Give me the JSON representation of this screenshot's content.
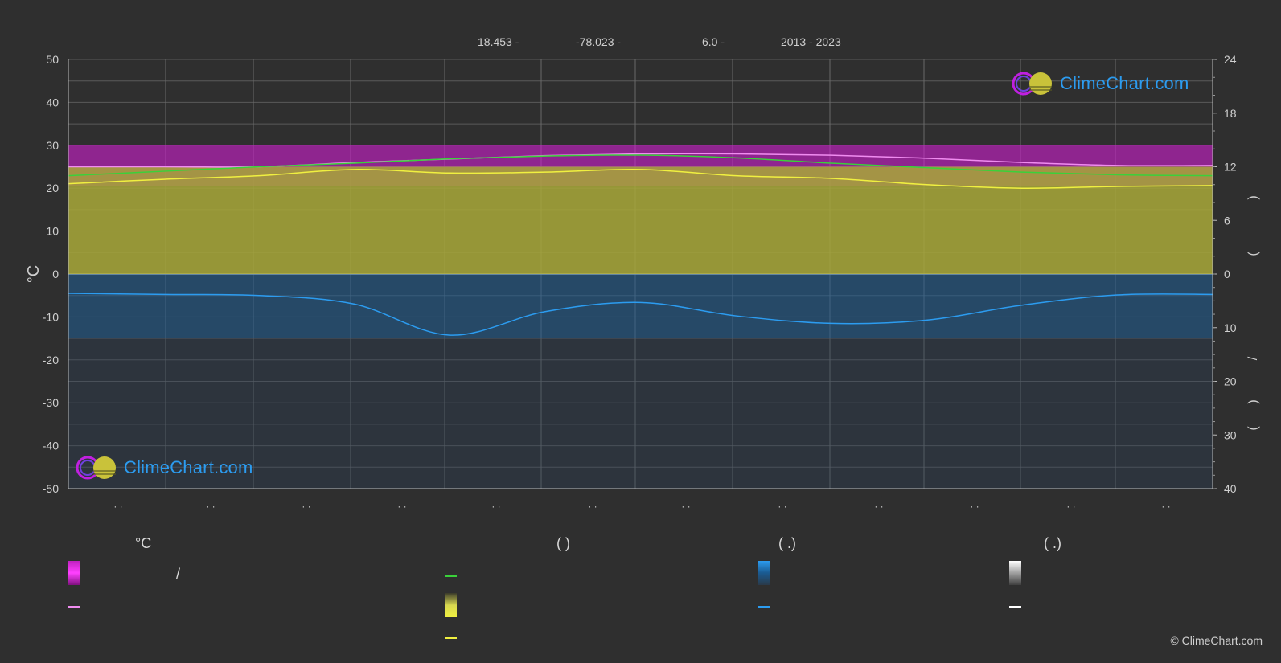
{
  "header": {
    "lat": "18.453 -",
    "lon": "-78.023 -",
    "elev": "6.0 -",
    "years": "2013 - 2023"
  },
  "logo_text": "ClimeChart.com",
  "copyright": "© ClimeChart.com",
  "legend": {
    "col1_head": "°C",
    "col1_row1_sep": "/",
    "col2_head": "(          )",
    "col3_head": "(    .)",
    "col4_head": "(    .)"
  },
  "colors": {
    "background": "#2f2f2f",
    "temp_band": "#d020d0",
    "sunshine_band": "#a8a838",
    "rain_band": "#1f5f95",
    "max_line": "#f08cf0",
    "daylight_line": "#3ad13a",
    "sunshine_line": "#f0f040",
    "rain_line": "#2c9cf0",
    "logo_blue": "#2c9cf0"
  },
  "icons": [
    "climechart-logo-icon"
  ],
  "chart_data": {
    "type": "area",
    "left_axis": {
      "label": "°C",
      "ticks": [
        50,
        40,
        30,
        20,
        10,
        0,
        -10,
        -20,
        -30,
        -40,
        -50
      ],
      "range": [
        -50,
        50
      ]
    },
    "right_axis_top": {
      "ticks": [
        24,
        18,
        12,
        6,
        0
      ],
      "range": [
        0,
        24
      ]
    },
    "right_axis_bottom": {
      "ticks": [
        0,
        10,
        20,
        30,
        40
      ],
      "range": [
        0,
        40
      ]
    },
    "x_tick_labels": [
      "· ·",
      "· ·",
      "· ·",
      "· ·",
      "· ·",
      "· ·",
      "· ·",
      "· ·",
      "· ·",
      "· ·",
      "· ·",
      "· ·"
    ],
    "grid": true,
    "series": [
      {
        "key": "max_temp_avg",
        "x": [
          0,
          1,
          2,
          3,
          4,
          5,
          6,
          7,
          8,
          9,
          10,
          11,
          12
        ],
        "values": [
          25,
          25,
          25,
          26,
          26.8,
          27.6,
          28,
          28,
          27.7,
          27,
          26,
          25.3,
          25.3
        ]
      },
      {
        "key": "daylight_hours",
        "x": [
          0,
          1,
          2,
          3,
          4,
          5,
          6,
          7,
          8,
          9,
          10,
          11,
          12
        ],
        "values": [
          11.0,
          11.5,
          12.0,
          12.4,
          12.9,
          13.2,
          13.3,
          13.0,
          12.4,
          11.9,
          11.4,
          11.1,
          11.0
        ]
      },
      {
        "key": "sunshine_hours",
        "x": [
          0,
          1,
          2,
          3,
          4,
          5,
          6,
          7,
          8,
          9,
          10,
          11,
          12
        ],
        "values": [
          10.1,
          10.6,
          11.0,
          11.7,
          11.3,
          11.4,
          11.7,
          11.0,
          10.7,
          10.0,
          9.6,
          9.8,
          9.9
        ]
      },
      {
        "key": "precip_avg",
        "x": [
          0,
          1,
          2,
          3,
          4,
          5,
          6,
          7,
          8,
          9,
          10,
          11,
          12
        ],
        "values": [
          3.6,
          3.8,
          4.0,
          5.6,
          11.4,
          7.0,
          5.3,
          7.8,
          9.2,
          8.6,
          5.8,
          3.9,
          3.8
        ]
      }
    ],
    "bands": {
      "temp_range": {
        "low": 20.5,
        "high": 30
      },
      "sunshine_fill_top_hours": 12.0
    }
  }
}
